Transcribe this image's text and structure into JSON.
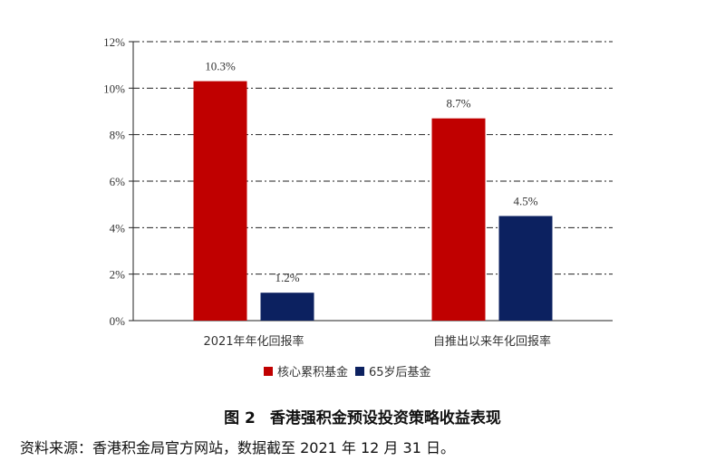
{
  "chart_data": {
    "type": "bar",
    "categories": [
      "2021年年化回报率",
      "自推出以来年化回报率"
    ],
    "series": [
      {
        "name": "核心累积基金",
        "values": [
          10.3,
          8.7
        ],
        "labels": [
          "10.3%",
          "8.7%"
        ],
        "color": "#c00000"
      },
      {
        "name": "65岁后基金",
        "values": [
          1.2,
          4.5
        ],
        "labels": [
          "1.2%",
          "4.5%"
        ],
        "color": "#0c2160"
      }
    ],
    "ylim": [
      0,
      12
    ],
    "yticks": [
      0,
      2,
      4,
      6,
      8,
      10,
      12
    ],
    "ytick_labels": [
      "0%",
      "2%",
      "4%",
      "6%",
      "8%",
      "10%",
      "12%"
    ],
    "grid": true,
    "grid_style": "dash-dot",
    "legend_position": "bottom-center",
    "title": "",
    "xlabel": "",
    "ylabel": ""
  },
  "caption": {
    "figure_number": "图 2",
    "title": "香港强积金预设投资策略收益表现"
  },
  "source_note": "资料来源：香港积金局官方网站，数据截至 2021 年 12 月 31 日。"
}
